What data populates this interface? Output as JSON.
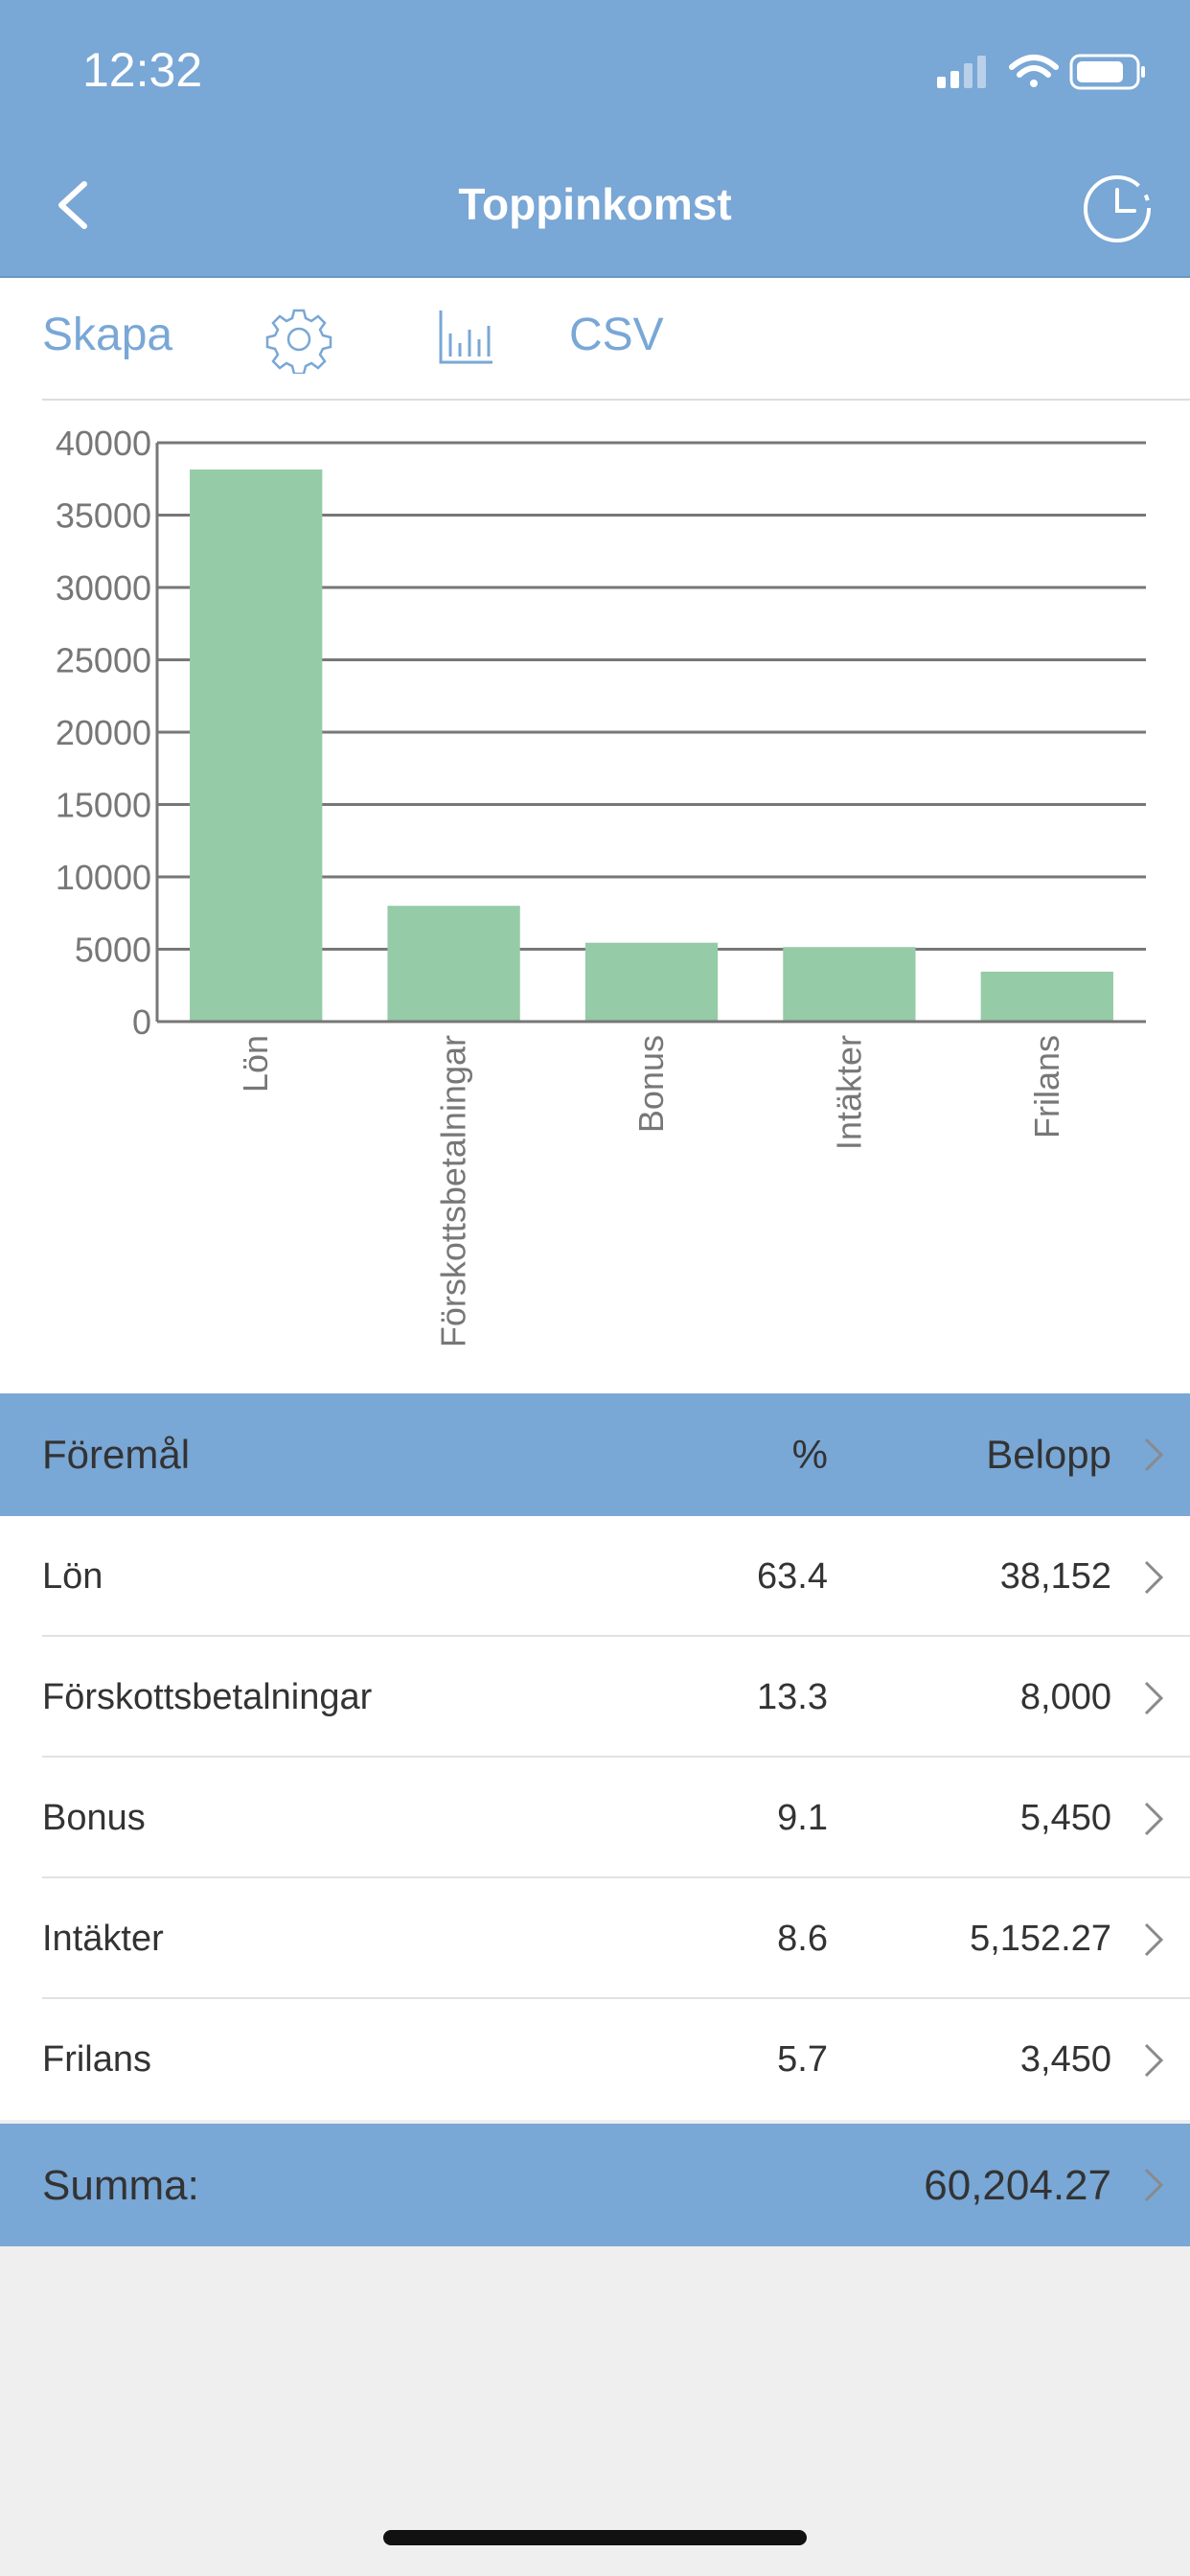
{
  "status_bar": {
    "time": "12:32"
  },
  "nav": {
    "title": "Toppinkomst",
    "back_icon": "chevron-left-icon",
    "history_icon": "clock-icon"
  },
  "toolbar": {
    "create_label": "Skapa",
    "settings_icon": "gear-icon",
    "chart_icon": "bar-chart-icon",
    "csv_label": "CSV"
  },
  "colors": {
    "accent": "#79a7d6",
    "bar": "#95cba6",
    "grid": "#777777"
  },
  "chart_data": {
    "type": "bar",
    "categories": [
      "Lön",
      "Förskottsbetalningar",
      "Bonus",
      "Intäkter",
      "Frilans"
    ],
    "values": [
      38152,
      8000,
      5450,
      5152.27,
      3450
    ],
    "ylim": [
      0,
      40000
    ],
    "yticks": [
      0,
      5000,
      10000,
      15000,
      20000,
      25000,
      30000,
      35000,
      40000
    ],
    "grid": true,
    "title": "",
    "xlabel": "",
    "ylabel": ""
  },
  "table": {
    "headers": {
      "item": "Föremål",
      "percent": "%",
      "amount": "Belopp"
    },
    "rows": [
      {
        "name": "Lön",
        "percent": "63.4",
        "amount": "38,152"
      },
      {
        "name": "Förskottsbetalningar",
        "percent": "13.3",
        "amount": "8,000"
      },
      {
        "name": "Bonus",
        "percent": "9.1",
        "amount": "5,450"
      },
      {
        "name": "Intäkter",
        "percent": "8.6",
        "amount": "5,152.27"
      },
      {
        "name": "Frilans",
        "percent": "5.7",
        "amount": "3,450"
      }
    ],
    "total_label": "Summa:",
    "total_value": "60,204.27"
  }
}
